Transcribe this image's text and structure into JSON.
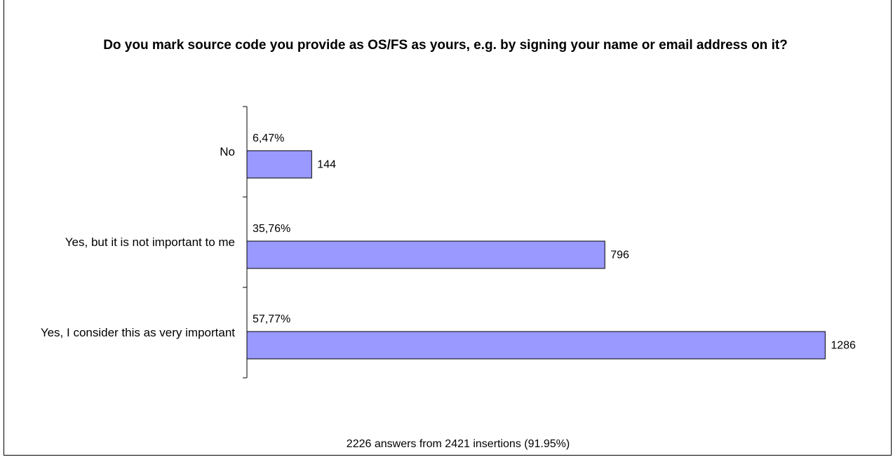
{
  "chart_data": {
    "type": "hbar",
    "title": "Do you mark source code you provide as OS/FS as yours, e.g. by signing your name or email address on it?",
    "categories": [
      "No",
      "Yes, but it is not important to me",
      "Yes, I consider this as very important"
    ],
    "values": [
      144,
      796,
      1286
    ],
    "share_labels": [
      "6,47%",
      "35,76%",
      "57,77%"
    ],
    "color": "#9999ff",
    "footnote": "2226 answers from 2421 insertions (91.95%)"
  }
}
